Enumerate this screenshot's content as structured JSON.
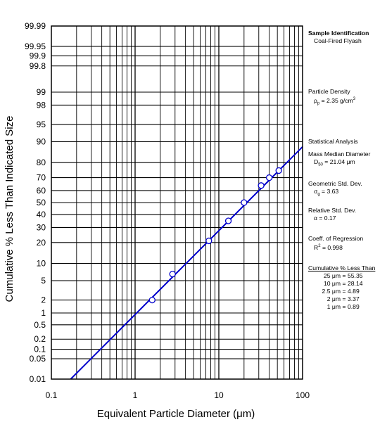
{
  "chart_data": {
    "type": "scatter",
    "x_scale": "log",
    "y_scale": "probability",
    "xlim": [
      0.1,
      100
    ],
    "ylim": [
      0.01,
      99.99
    ],
    "xlabel": "Equivalent Particle Diameter (μm)",
    "ylabel": "Cumulative % Less Than Indicated Size",
    "x_ticks": [
      "0.1",
      "1",
      "10",
      "100"
    ],
    "y_ticks": [
      "0.01",
      "0.05",
      "0.1",
      "0.2",
      "0.5",
      "1",
      "2",
      "5",
      "10",
      "20",
      "30",
      "40",
      "50",
      "60",
      "70",
      "80",
      "90",
      "95",
      "98",
      "99",
      "99.8",
      "99.9",
      "99.95",
      "99.99"
    ],
    "grid": true,
    "series": [
      {
        "kind": "points",
        "color": "#0000cc",
        "x": [
          1.6,
          2.8,
          7.6,
          13.0,
          20.0,
          32.0,
          40.0,
          52.0
        ],
        "y": [
          2.0,
          6.6,
          21.0,
          35.0,
          50.0,
          64.0,
          70.0,
          75.0
        ]
      },
      {
        "kind": "fit-line",
        "color": "#0000cc",
        "x": [
          0.17,
          100
        ],
        "y": [
          0.01,
          88
        ]
      }
    ]
  },
  "side": {
    "sample_title": "Sample Identification",
    "sample_value": "Coal-Fired Flyash",
    "density_title": "Particle Density",
    "density_symbol": "ρ",
    "density_sub": "p",
    "density_value": " = 2.35 g/cm",
    "density_sup": "3",
    "stat_title": "Statistical Analysis",
    "mmd_title": "Mass Median Diameter",
    "mmd_symbol": "D",
    "mmd_sub": "50",
    "mmd_value": " = 21.04 μm",
    "gsd_title": "Geometric Std. Dev.",
    "gsd_symbol": "σ",
    "gsd_sub": "g",
    "gsd_value": " = 3.63",
    "rsd_title": "Relative Std. Dev.",
    "rsd_value": "α = 0.17",
    "reg_title": "Coeff. of Regression",
    "reg_symbol": "R",
    "reg_sup": "2",
    "reg_value": " = 0.998",
    "cum_title": "Cumulative % Less Than",
    "cum_rows": [
      {
        "label": "25 μm",
        "value": "55.35"
      },
      {
        "label": "10 μm",
        "value": "28.14"
      },
      {
        "label": "2.5 μm",
        "value": "4.89"
      },
      {
        "label": "2 μm",
        "value": "3.37"
      },
      {
        "label": "1 μm",
        "value": "0.89"
      }
    ]
  }
}
